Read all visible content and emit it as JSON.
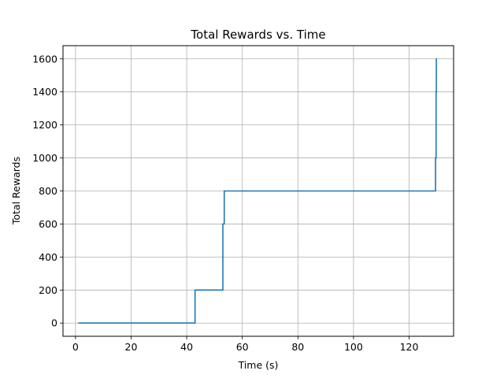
{
  "chart_data": {
    "type": "line",
    "title": "Total Rewards vs. Time",
    "xlabel": "Time (s)",
    "ylabel": "Total Rewards",
    "xlim": [
      -4.5,
      136
    ],
    "ylim": [
      -80,
      1680
    ],
    "xticks": [
      0,
      20,
      40,
      60,
      80,
      100,
      120
    ],
    "yticks": [
      0,
      200,
      400,
      600,
      800,
      1000,
      1200,
      1400,
      1600
    ],
    "grid": true,
    "line_color": "#1f77b4",
    "series": [
      {
        "x": [
          1.0,
          43.0,
          43.0,
          53.0,
          53.0,
          53.5,
          53.5,
          129.5,
          129.5,
          129.7,
          129.7,
          129.8,
          129.8,
          130.0
        ],
        "y": [
          0,
          0,
          200,
          200,
          600,
          600,
          800,
          800,
          1000,
          1000,
          1400,
          1400,
          1600,
          1600
        ]
      }
    ]
  }
}
